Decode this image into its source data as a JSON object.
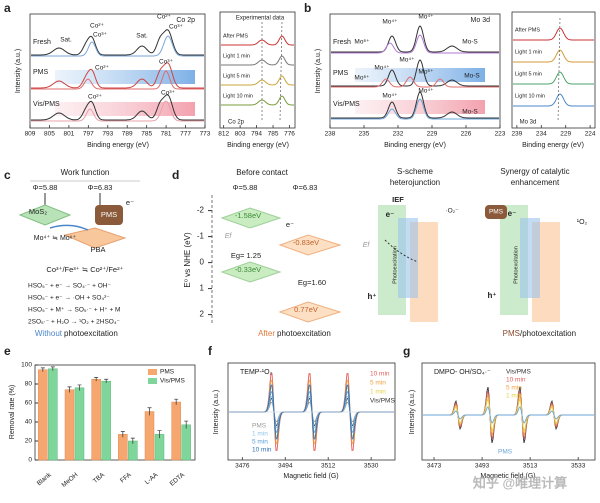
{
  "watermark": "知乎 @唯理计算",
  "panel_a": {
    "label": "a",
    "title": "Co 2p",
    "ylabel": "Intensity (a.u.)",
    "xlabel": "Binding energy (eV)",
    "xlim": [
      809,
      773
    ],
    "xticks": [
      809,
      805,
      801,
      797,
      793,
      789,
      785,
      781,
      777,
      773
    ],
    "curves": [
      "Fresh",
      "PMS",
      "Vis/PMS"
    ],
    "peaks": [
      "Sat.",
      "Co²⁺",
      "Co³⁺",
      "Sat.",
      "Co²⁺",
      "Co³⁺",
      "Co²⁺",
      "Co³⁺",
      "Co²⁺",
      "Co³⁺"
    ],
    "inset": {
      "title": "Co 2p",
      "xlabel": "Binding energy (eV)",
      "legend": "Experimental data",
      "xlim": [
        814,
        773
      ],
      "xticks": [
        812,
        803,
        794,
        785,
        776
      ],
      "curves": [
        "After PMS",
        "Light 1 min",
        "Light 5 min",
        "Light 10 min"
      ]
    }
  },
  "panel_b": {
    "label": "b",
    "title": "Mo 3d",
    "ylabel": "Intensity (a.u.)",
    "xlabel": "Binding energy (eV)",
    "xlim": [
      238,
      223
    ],
    "xticks": [
      238,
      235,
      232,
      229,
      226,
      223
    ],
    "curves": [
      "Fresh",
      "PMS",
      "Vis/PMS"
    ],
    "peaks": [
      "Mo⁴⁺",
      "Mo⁴⁺",
      "Mo⁶⁺",
      "Mo-S",
      "Mo⁶⁺",
      "Mo⁴⁺",
      "Mo⁴⁺",
      "Mo⁶⁺",
      "Mo-S",
      "Mo⁴⁺",
      "Mo⁴⁺",
      "Mo-S"
    ],
    "inset": {
      "title": "Mo 3d",
      "xlabel": "Binding energy (eV)",
      "xlim": [
        240,
        223
      ],
      "xticks": [
        239,
        234,
        229,
        224
      ],
      "curves": [
        "After PMS",
        "Light 1 min",
        "Light 5 min",
        "Light 10 min"
      ]
    }
  },
  "panel_c": {
    "label": "c",
    "title": "Work function",
    "phi_left": "Φ=5.88",
    "phi_right": "Φ=6.83",
    "mos2": "MoS₂",
    "pms": "PMS",
    "electron": "e⁻",
    "mo_redox": "Mo⁴⁺ ≒ Mo⁶⁺",
    "pba": "PBA",
    "co_redox": "Co³⁺/Fe³⁺ ≒ Co²⁺/Fe²⁺",
    "reactions": [
      "HSO₅⁻ + e⁻ → SO₄·⁻ + OH⁻",
      "HSO₅⁻ + e⁻ → ·OH + SO₄²⁻",
      "HSO₅⁻ + M⁺ → SO₅·⁻ + H⁺ + M",
      "2SO₅·⁻ + H₂O → ¹O₂ + 2HSO₄⁻"
    ],
    "caption": [
      "Without",
      "photoexcitation"
    ]
  },
  "panel_d": {
    "label": "d",
    "ylabel": "E⁰ vs NHE (eV)",
    "ylim": [
      -2.6,
      2.4
    ],
    "yticks": [
      -2,
      -1,
      0,
      1,
      2
    ],
    "before": {
      "title": "Before contact",
      "phi_left": "Φ=5.88",
      "phi_right": "Φ=6.83",
      "cb_left": "-1.58eV",
      "ef": "Ef",
      "eg_left": "Eg= 1.25",
      "vb_left": "-0.33eV",
      "cb_right": "-0.83eV",
      "eg_right": "Eg=1.60",
      "vb_right": "0.77eV",
      "electron": "e⁻"
    },
    "caption": [
      "After",
      "photoexcitation"
    ],
    "sscheme": {
      "title": [
        "S-scheme",
        "heterojunction"
      ],
      "ief": "IEF",
      "ef": "Ef",
      "electron": "e⁻",
      "hole": "h⁺",
      "photo": "Photoexcitation",
      "o2": "·O₂⁻"
    },
    "synergy": {
      "title": [
        "Synergy of catalytic",
        "enhancement"
      ],
      "pms": "PMS",
      "singlet": "¹O₂",
      "electron": "e⁻",
      "hole": "h⁺",
      "photo": "Photoexcitation",
      "caption": [
        "PMS",
        "/photoexcitation"
      ]
    }
  },
  "panel_e": {
    "label": "e",
    "ylabel": "Removal rate (%)",
    "categories": [
      "Blank",
      "MeOH",
      "TBA",
      "FFA",
      "L-AA",
      "EDTA"
    ],
    "series": [
      {
        "name": "PMS",
        "color": "#f6a66f",
        "values": [
          95,
          74,
          85,
          27,
          51,
          61
        ],
        "errors": [
          2,
          3,
          2,
          3,
          4,
          3
        ]
      },
      {
        "name": "Vis/PMS",
        "color": "#7fd69b",
        "values": [
          96,
          76,
          83,
          20,
          27,
          37
        ],
        "errors": [
          2,
          3,
          2,
          3,
          4,
          4
        ]
      }
    ],
    "ylim": [
      0,
      100
    ],
    "yticks": [
      0,
      20,
      40,
      60,
      80,
      100
    ]
  },
  "panel_f": {
    "label": "f",
    "title": "TEMP-¹O₂",
    "xlabel": "Magnetic field (G)",
    "ylabel": "Intensity (a.u.)",
    "xlim": [
      3470,
      3540
    ],
    "xticks": [
      3476,
      3494,
      3512,
      3530
    ],
    "legend_top": [
      "10 min",
      "5 min",
      "1 min",
      "Vis/PMS"
    ],
    "legend_bottom": [
      "PMS",
      "1 min",
      "5 min",
      "10 min"
    ]
  },
  "panel_g": {
    "label": "g",
    "title": "DMPO- OH/SO₄·⁻",
    "xlabel": "Magnetic field (G)",
    "ylabel": "Intensity (a.u.)",
    "xlim": [
      3468,
      3540
    ],
    "xticks": [
      3473,
      3493,
      3513,
      3533
    ],
    "legend_top": [
      "Vis/PMS",
      "10 min",
      "5 min",
      "1 min"
    ],
    "legend_bottom": [
      "PMS"
    ]
  }
}
